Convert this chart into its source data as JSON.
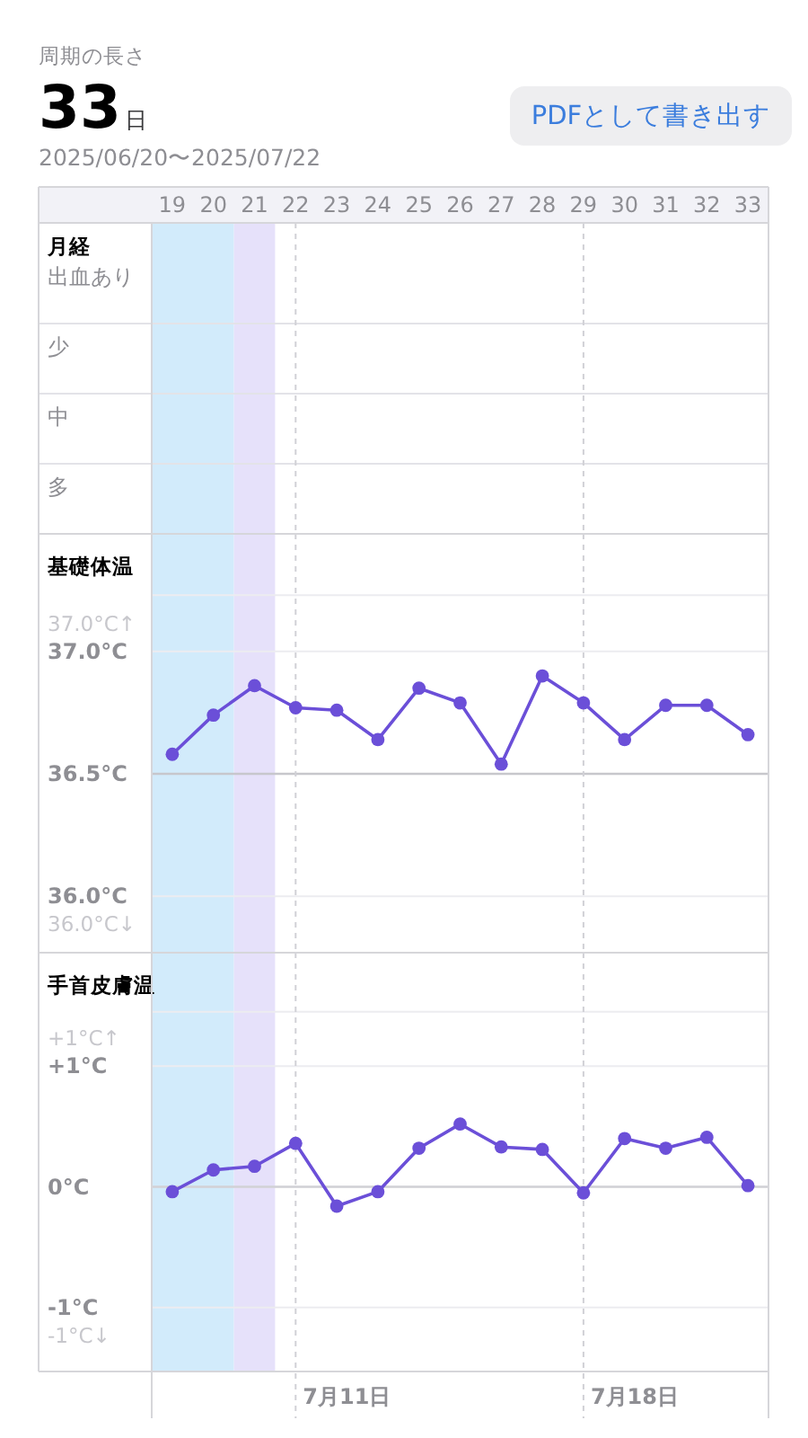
{
  "chart_data": [
    {
      "type": "other",
      "title": "周期の長さ",
      "annotations": [
        "33日",
        "2025/06/20〜2025/07/22",
        "PDFとして書き出す"
      ]
    },
    {
      "type": "heatmap",
      "title": "月経",
      "categories": [
        "19",
        "20",
        "21",
        "22",
        "23",
        "24",
        "25",
        "26",
        "27",
        "28",
        "29",
        "30",
        "31",
        "32",
        "33"
      ],
      "y_categories": [
        "出血あり",
        "少",
        "中",
        "多"
      ],
      "cells": [
        [
          null,
          null,
          null,
          null,
          null,
          null,
          null,
          null,
          null,
          null,
          null,
          null,
          null,
          null,
          null
        ],
        [
          null,
          null,
          null,
          null,
          null,
          null,
          null,
          null,
          null,
          null,
          null,
          null,
          null,
          null,
          null
        ],
        [
          null,
          null,
          null,
          null,
          null,
          null,
          null,
          null,
          null,
          null,
          null,
          null,
          null,
          null,
          null
        ],
        [
          null,
          null,
          null,
          null,
          null,
          null,
          null,
          null,
          null,
          null,
          null,
          null,
          null,
          null,
          null
        ]
      ],
      "bands": [
        {
          "axis": "x",
          "from": "19",
          "to": "20",
          "color": "#d2ebfb"
        },
        {
          "axis": "x",
          "from": "21",
          "to": "21",
          "color": "#e6e1fa"
        }
      ],
      "ref_lines": [
        {
          "axis": "x",
          "value": "22",
          "line_style": "dashed",
          "color": "#d1d1d6"
        },
        {
          "axis": "x",
          "value": "29",
          "line_style": "dashed",
          "color": "#d1d1d6"
        }
      ]
    },
    {
      "type": "line",
      "title": "基礎体温",
      "categories": [
        "19",
        "20",
        "21",
        "22",
        "23",
        "24",
        "25",
        "26",
        "27",
        "28",
        "29",
        "30",
        "31",
        "32",
        "33"
      ],
      "ylim": [
        35.77,
        37.48
      ],
      "yticks": [
        {
          "value": 36.0,
          "label": "36.0°C"
        },
        {
          "value": 36.5,
          "label": "36.5°C"
        },
        {
          "value": 37.0,
          "label": "37.0°C"
        },
        {
          "value": 37.23,
          "label": null
        }
      ],
      "tick_labels": "y",
      "grid": "y",
      "marker": "circle",
      "series": [
        {
          "color": "#6b4fd8",
          "values": [
            36.58,
            36.74,
            36.86,
            36.77,
            36.76,
            36.64,
            36.85,
            36.79,
            36.54,
            36.9,
            36.79,
            36.64,
            36.78,
            36.78,
            36.66
          ]
        }
      ],
      "annotations": [
        "37.0°C↑",
        "36.0°C↓"
      ],
      "bands": [
        {
          "axis": "x",
          "from": "19",
          "to": "20",
          "color": "#d2ebfb"
        },
        {
          "axis": "x",
          "from": "21",
          "to": "21",
          "color": "#e6e1fa"
        }
      ],
      "ref_lines": [
        {
          "axis": "y",
          "value": 36.5,
          "color": "#c7c7cc"
        },
        {
          "axis": "x",
          "value": "22",
          "line_style": "dashed",
          "color": "#d1d1d6"
        },
        {
          "axis": "x",
          "value": "29",
          "line_style": "dashed",
          "color": "#d1d1d6"
        }
      ]
    },
    {
      "type": "line",
      "title": "手首皮膚温",
      "categories": [
        "19",
        "20",
        "21",
        "22",
        "23",
        "24",
        "25",
        "26",
        "27",
        "28",
        "29",
        "30",
        "31",
        "32",
        "33"
      ],
      "ylim": [
        -1.53,
        1.94
      ],
      "yticks": [
        {
          "value": -1,
          "label": "-1°C"
        },
        {
          "value": 0,
          "label": "0°C"
        },
        {
          "value": 1,
          "label": "+1°C"
        },
        {
          "value": 1.45,
          "label": null
        }
      ],
      "tick_labels": "y",
      "grid": "y",
      "marker": "circle",
      "series": [
        {
          "color": "#6b4fd8",
          "values": [
            -0.04,
            0.14,
            0.17,
            0.36,
            -0.16,
            -0.04,
            0.32,
            0.52,
            0.33,
            0.31,
            -0.05,
            0.4,
            0.32,
            0.41,
            0.01
          ]
        }
      ],
      "annotations": [
        "+1°C↑",
        "-1°C↓"
      ],
      "bands": [
        {
          "axis": "x",
          "from": "19",
          "to": "20",
          "color": "#d2ebfb"
        },
        {
          "axis": "x",
          "from": "21",
          "to": "21",
          "color": "#e6e1fa"
        }
      ],
      "ref_lines": [
        {
          "axis": "y",
          "value": 0,
          "color": "#d1d1d6"
        },
        {
          "axis": "x",
          "value": "22",
          "line_style": "dashed",
          "color": "#d1d1d6",
          "label": "7月11日"
        },
        {
          "axis": "x",
          "value": "29",
          "line_style": "dashed",
          "color": "#d1d1d6",
          "label": "7月18日"
        }
      ]
    }
  ]
}
